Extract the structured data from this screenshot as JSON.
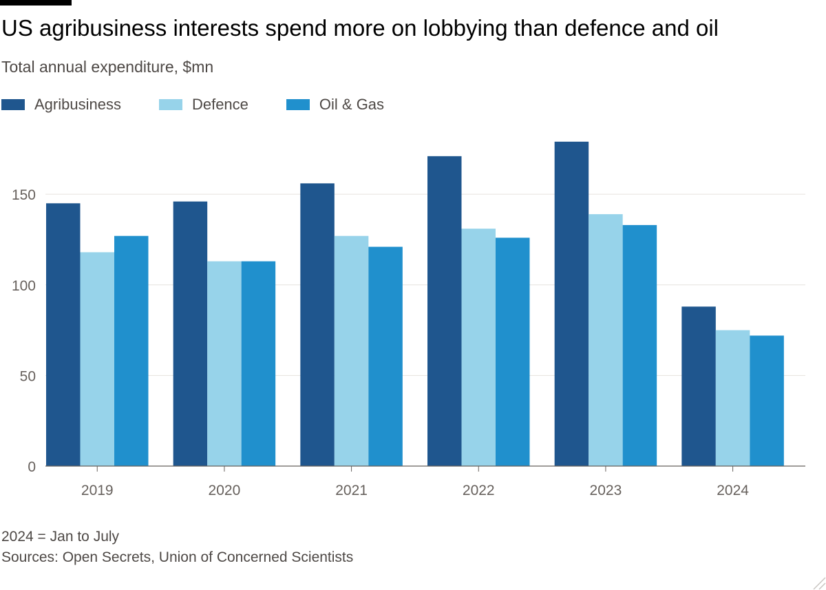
{
  "title": "US agribusiness interests spend more on lobbying than defence and oil",
  "subtitle": "Total annual expenditure, $mn",
  "footnote": "2024 = Jan to July",
  "source": "Sources: Open Secrets, Union of Concerned Scientists",
  "colors": {
    "agribusiness": "#1f568e",
    "defence": "#97d3ea",
    "oil_gas": "#2090cd",
    "gridline": "#e6e2dd",
    "axis": "#66605c",
    "tick_text": "#66605c"
  },
  "chart_data": {
    "type": "bar",
    "title": "US agribusiness interests spend more on lobbying than defence and oil",
    "subtitle": "Total annual expenditure, $mn",
    "xlabel": "",
    "ylabel": "",
    "ylim": [
      0,
      185
    ],
    "yticks": [
      0,
      50,
      100,
      150
    ],
    "grid": true,
    "legend_position": "top-left",
    "categories": [
      "2019",
      "2020",
      "2021",
      "2022",
      "2023",
      "2024"
    ],
    "series": [
      {
        "name": "Agribusiness",
        "color_key": "agribusiness",
        "values": [
          145,
          146,
          156,
          171,
          179,
          88
        ]
      },
      {
        "name": "Defence",
        "color_key": "defence",
        "values": [
          118,
          113,
          127,
          131,
          139,
          75
        ]
      },
      {
        "name": "Oil & Gas",
        "color_key": "oil_gas",
        "values": [
          127,
          113,
          121,
          126,
          133,
          72
        ]
      }
    ]
  }
}
